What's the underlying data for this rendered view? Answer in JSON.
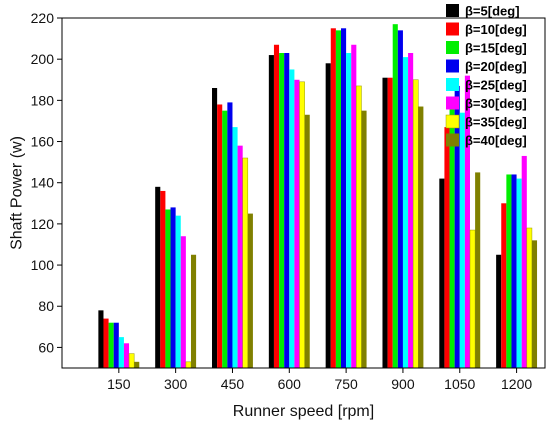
{
  "chart_data": {
    "type": "bar",
    "title": "",
    "xlabel": "Runner speed [rpm]",
    "ylabel": "Shaft Power (w)",
    "categories": [
      "150",
      "300",
      "450",
      "600",
      "750",
      "900",
      "1050",
      "1200"
    ],
    "ylim": [
      50,
      220
    ],
    "yticks": [
      60,
      80,
      100,
      120,
      140,
      160,
      180,
      200,
      220
    ],
    "grid": false,
    "legend_position": "top-right",
    "series": [
      {
        "name": "β=5[deg]",
        "color": "#000000",
        "values": [
          78,
          138,
          186,
          202,
          198,
          191,
          142,
          105
        ]
      },
      {
        "name": "β=10[deg]",
        "color": "#ff0000",
        "values": [
          74,
          136,
          178,
          207,
          215,
          191,
          167,
          130
        ]
      },
      {
        "name": "β=15[deg]",
        "color": "#00ee00",
        "values": [
          72,
          127,
          175,
          203,
          214,
          217,
          179,
          144
        ]
      },
      {
        "name": "β=20[deg]",
        "color": "#0000ee",
        "values": [
          72,
          128,
          179,
          203,
          215,
          214,
          187,
          144
        ]
      },
      {
        "name": "β=25[deg]",
        "color": "#00ffff",
        "values": [
          65,
          124,
          167,
          195,
          203,
          201,
          174,
          142
        ]
      },
      {
        "name": "β=30[deg]",
        "color": "#ff00ff",
        "values": [
          62,
          114,
          158,
          190,
          207,
          203,
          192,
          153
        ]
      },
      {
        "name": "β=35[deg]",
        "color": "#ffff00",
        "values": [
          57,
          53,
          152,
          189,
          187,
          190,
          117,
          118
        ]
      },
      {
        "name": "β=40[deg]",
        "color": "#808000",
        "values": [
          53,
          105,
          125,
          173,
          175,
          177,
          145,
          112
        ]
      }
    ]
  }
}
